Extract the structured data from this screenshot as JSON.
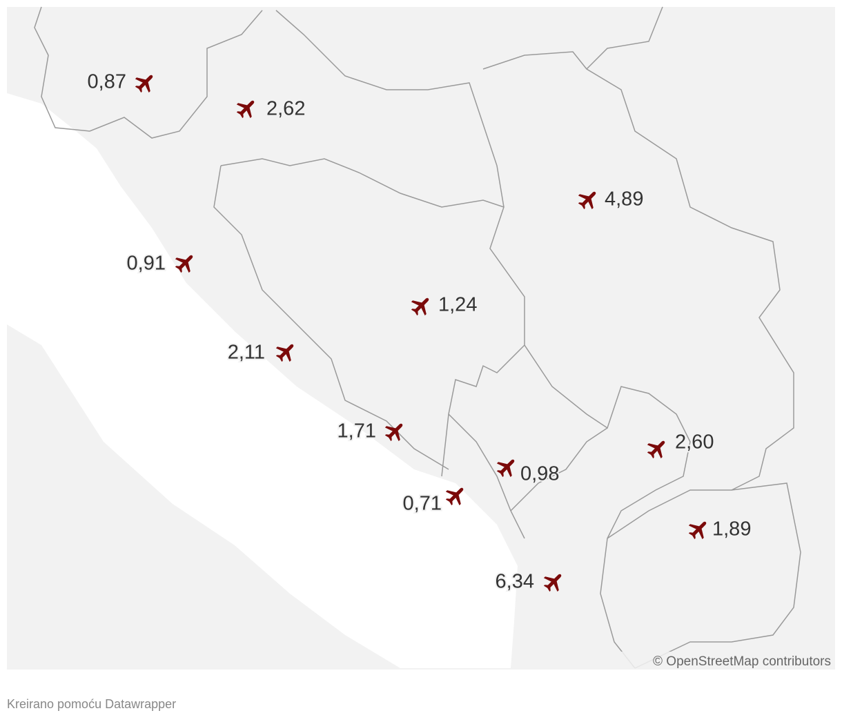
{
  "markers": [
    {
      "label": "0,87"
    },
    {
      "label": "2,62"
    },
    {
      "label": "4,89"
    },
    {
      "label": "0,91"
    },
    {
      "label": "1,24"
    },
    {
      "label": "2,11"
    },
    {
      "label": "1,71"
    },
    {
      "label": "2,60"
    },
    {
      "label": "0,98"
    },
    {
      "label": "0,71"
    },
    {
      "label": "1,89"
    },
    {
      "label": "6,34"
    }
  ],
  "attribution": "© OpenStreetMap contributors",
  "footer": "Kreirano pomoću Datawrapper"
}
